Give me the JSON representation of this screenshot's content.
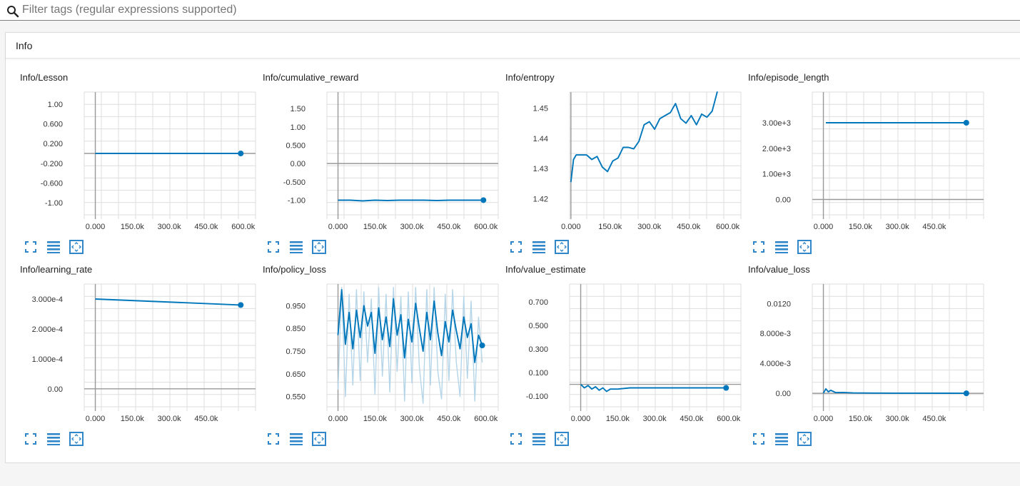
{
  "search": {
    "placeholder": "Filter tags (regular expressions supported)",
    "value": ""
  },
  "panel": {
    "title": "Info"
  },
  "colors": {
    "line": "#0077bb",
    "line_light": "#b5d5e8",
    "grid": "#dddddd",
    "axis": "#999999",
    "icon": "#2f86c8"
  },
  "chart_data": [
    {
      "type": "line",
      "title": "Info/Lesson",
      "xticks": [
        "0.000",
        "150.0k",
        "300.0k",
        "450.0k",
        "600.0k"
      ],
      "xlim": [
        -45000,
        650000
      ],
      "yticks": [
        "1.00",
        "0.600",
        "0.200",
        "-0.200",
        "-0.600",
        "-1.00"
      ],
      "ylim": [
        -1.25,
        1.25
      ],
      "series": [
        {
          "x": [
            0,
            590000
          ],
          "y": [
            0,
            0
          ]
        }
      ]
    },
    {
      "type": "line",
      "title": "Info/cumulative_reward",
      "xticks": [
        "0.000",
        "150.0k",
        "300.0k",
        "450.0k",
        "600.0k"
      ],
      "xlim": [
        -45000,
        650000
      ],
      "yticks": [
        "1.50",
        "1.00",
        "0.500",
        "0.00",
        "-0.500",
        "-1.00"
      ],
      "ylim": [
        -1.4,
        1.95
      ],
      "series": [
        {
          "x": [
            0,
            50000,
            100000,
            150000,
            200000,
            250000,
            300000,
            350000,
            400000,
            450000,
            500000,
            550000,
            590000
          ],
          "y": [
            -1.0,
            -1.0,
            -1.02,
            -1.0,
            -1.01,
            -1.0,
            -1.0,
            -1.0,
            -1.01,
            -1.0,
            -1.0,
            -1.0,
            -1.0
          ]
        }
      ]
    },
    {
      "type": "line",
      "title": "Info/entropy",
      "xticks": [
        "0.000",
        "150.0k",
        "300.0k",
        "450.0k",
        "600.0k"
      ],
      "xlim": [
        -5000,
        650000
      ],
      "yticks": [
        "1.45",
        "1.44",
        "1.43",
        "1.42"
      ],
      "ylim": [
        1.4147,
        1.4553
      ],
      "series": [
        {
          "x": [
            0,
            10000,
            20000,
            40000,
            60000,
            80000,
            100000,
            120000,
            140000,
            160000,
            180000,
            200000,
            220000,
            240000,
            260000,
            280000,
            300000,
            320000,
            340000,
            360000,
            380000,
            400000,
            420000,
            440000,
            460000,
            480000,
            500000,
            520000,
            540000,
            560000
          ],
          "y": [
            1.4255,
            1.433,
            1.4345,
            1.4345,
            1.4345,
            1.433,
            1.434,
            1.4305,
            1.429,
            1.4325,
            1.4335,
            1.437,
            1.437,
            1.4365,
            1.439,
            1.4445,
            1.4455,
            1.443,
            1.4465,
            1.4475,
            1.4485,
            1.4515,
            1.4465,
            1.445,
            1.4475,
            1.4445,
            1.448,
            1.447,
            1.449,
            1.4555
          ]
        }
      ]
    },
    {
      "type": "line",
      "title": "Info/episode_length",
      "xticks": [
        "0.000",
        "150.0k",
        "300.0k",
        "450.0k"
      ],
      "xlim": [
        -45000,
        650000
      ],
      "yticks": [
        "3.00e+3",
        "2.00e+3",
        "1.00e+3",
        "0.00"
      ],
      "ylim": [
        -600,
        4200
      ],
      "series": [
        {
          "x": [
            10000,
            580000
          ],
          "y": [
            3000,
            3000
          ]
        }
      ]
    },
    {
      "type": "line",
      "title": "Info/learning_rate",
      "xticks": [
        "0.000",
        "150.0k",
        "300.0k",
        "450.0k"
      ],
      "xlim": [
        -45000,
        650000
      ],
      "yticks": [
        "3.000e-4",
        "2.000e-4",
        "1.000e-4",
        "0.00"
      ],
      "ylim": [
        -6e-05,
        0.00035
      ],
      "series": [
        {
          "x": [
            0,
            590000
          ],
          "y": [
            0.0003,
            0.00028
          ]
        }
      ]
    },
    {
      "type": "line",
      "title": "Info/policy_loss",
      "xticks": [
        "0.000",
        "150.0k",
        "300.0k",
        "450.0k",
        "600.0k"
      ],
      "xlim": [
        -45000,
        650000
      ],
      "yticks": [
        "0.950",
        "0.850",
        "0.750",
        "0.650",
        "0.550"
      ],
      "ylim": [
        0.505,
        1.045
      ],
      "series": [
        {
          "x": [
            0,
            15000,
            30000,
            45000,
            60000,
            75000,
            90000,
            105000,
            120000,
            135000,
            150000,
            165000,
            180000,
            195000,
            210000,
            225000,
            240000,
            255000,
            270000,
            285000,
            300000,
            315000,
            330000,
            345000,
            360000,
            375000,
            390000,
            405000,
            420000,
            435000,
            450000,
            465000,
            480000,
            495000,
            510000,
            525000,
            540000,
            555000,
            570000,
            585000
          ],
          "y": [
            0.82,
            1.02,
            0.78,
            0.92,
            0.76,
            0.93,
            0.81,
            0.95,
            0.86,
            0.92,
            0.74,
            0.94,
            0.8,
            0.9,
            0.77,
            0.98,
            0.82,
            0.91,
            0.72,
            0.89,
            0.79,
            0.96,
            0.85,
            0.75,
            0.92,
            0.8,
            0.97,
            0.83,
            0.73,
            0.88,
            0.79,
            0.93,
            0.84,
            0.76,
            0.9,
            0.81,
            0.87,
            0.7,
            0.82,
            0.775
          ]
        },
        {
          "x": [
            0,
            15000,
            30000,
            45000,
            60000,
            75000,
            90000,
            105000,
            120000,
            135000,
            150000,
            165000,
            180000,
            195000,
            210000,
            225000,
            240000,
            255000,
            270000,
            285000,
            300000,
            315000,
            330000,
            345000,
            360000,
            375000,
            390000,
            405000,
            420000,
            435000,
            450000,
            465000,
            480000,
            495000,
            510000,
            525000,
            540000,
            555000,
            570000,
            585000
          ],
          "y": [
            0.58,
            1.03,
            0.55,
            1.0,
            0.6,
            1.02,
            0.62,
            1.01,
            0.7,
            0.98,
            0.56,
            1.03,
            0.64,
            1.0,
            0.57,
            1.03,
            0.66,
            0.99,
            0.53,
            1.01,
            0.61,
            1.03,
            0.68,
            0.52,
            1.02,
            0.6,
            1.03,
            0.66,
            0.54,
            1.0,
            0.62,
            1.02,
            0.7,
            0.55,
            0.99,
            0.63,
            0.97,
            0.53,
            0.9,
            0.7
          ]
        }
      ]
    },
    {
      "type": "line",
      "title": "Info/value_estimate",
      "xticks": [
        "0.000",
        "150.0k",
        "300.0k",
        "450.0k",
        "600.0k"
      ],
      "xlim": [
        -45000,
        650000
      ],
      "yticks": [
        "0.700",
        "0.500",
        "0.300",
        "0.100",
        "-0.100"
      ],
      "ylim": [
        -0.19,
        0.85
      ],
      "series": [
        {
          "x": [
            0,
            15000,
            30000,
            45000,
            60000,
            75000,
            90000,
            105000,
            120000,
            150000,
            200000,
            250000,
            300000,
            350000,
            400000,
            450000,
            500000,
            550000,
            590000
          ],
          "y": [
            0.0,
            -0.03,
            -0.01,
            -0.04,
            -0.02,
            -0.05,
            -0.03,
            -0.06,
            -0.04,
            -0.04,
            -0.03,
            -0.03,
            -0.03,
            -0.03,
            -0.03,
            -0.03,
            -0.03,
            -0.03,
            -0.03
          ]
        }
      ]
    },
    {
      "type": "line",
      "title": "Info/value_loss",
      "xticks": [
        "0.000",
        "150.0k",
        "300.0k",
        "450.0k"
      ],
      "xlim": [
        -45000,
        650000
      ],
      "yticks": [
        "0.0120",
        "8.000e-3",
        "4.000e-3",
        "0.00"
      ],
      "ylim": [
        -0.0018,
        0.0146
      ],
      "series": [
        {
          "x": [
            0,
            10000,
            20000,
            30000,
            50000,
            80000,
            120000,
            200000,
            300000,
            400000,
            500000,
            580000
          ],
          "y": [
            0.0,
            0.0006,
            0.0002,
            0.0004,
            0.0001,
            0.00012,
            5e-05,
            3e-05,
            2e-05,
            2e-05,
            1e-05,
            0.0
          ]
        }
      ]
    }
  ]
}
